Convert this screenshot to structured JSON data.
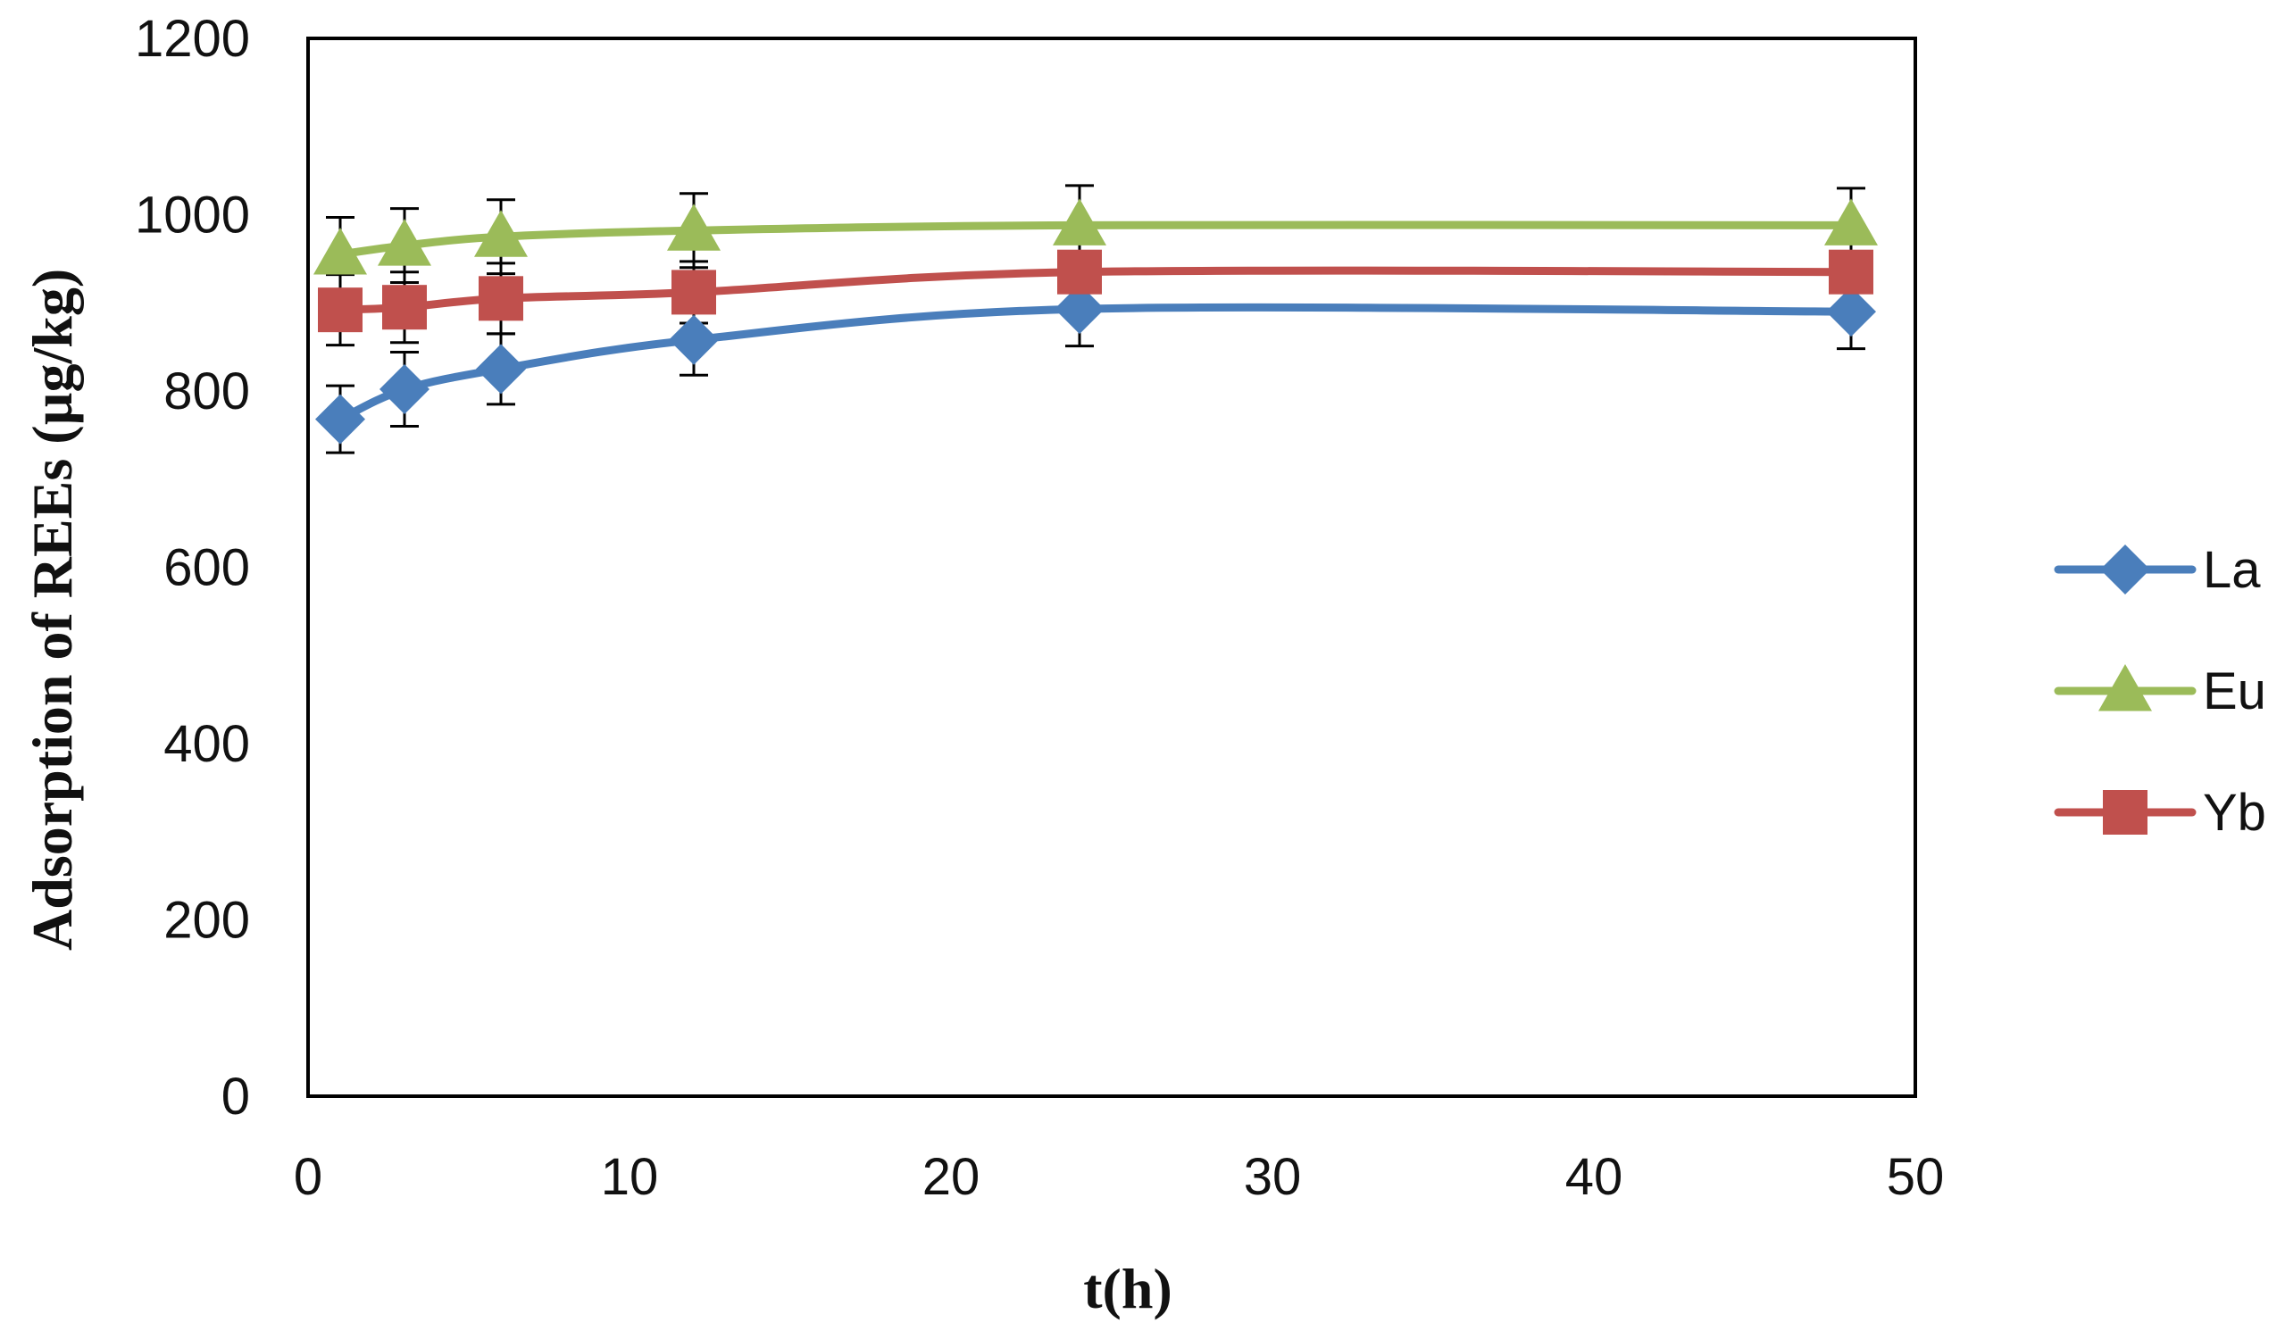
{
  "chart_data": {
    "type": "line",
    "title": "",
    "xlabel": "t(h)",
    "ylabel": "Adsorption of REEs (µg/kg)",
    "xlim": [
      0,
      50
    ],
    "ylim": [
      0,
      1200
    ],
    "x_ticks": [
      0,
      10,
      20,
      30,
      40,
      50
    ],
    "y_ticks": [
      0,
      200,
      400,
      600,
      800,
      1000,
      1200
    ],
    "grid": false,
    "legend_position": "right",
    "x": [
      1,
      3,
      6,
      12,
      24,
      48
    ],
    "series": [
      {
        "name": "La",
        "marker": "diamond",
        "color": "#4a7ebb",
        "values": [
          768,
          802,
          825,
          858,
          893,
          890
        ],
        "errors": [
          38,
          42,
          40,
          40,
          42,
          42
        ]
      },
      {
        "name": "Eu",
        "marker": "triangle",
        "color": "#9bbb59",
        "values": [
          955,
          965,
          975,
          982,
          988,
          988
        ],
        "errors": [
          42,
          42,
          42,
          42,
          45,
          42
        ]
      },
      {
        "name": "Yb",
        "marker": "square",
        "color": "#c0504d",
        "values": [
          892,
          895,
          905,
          912,
          935,
          935
        ],
        "errors": [
          40,
          40,
          40,
          35,
          40,
          40
        ]
      }
    ]
  }
}
